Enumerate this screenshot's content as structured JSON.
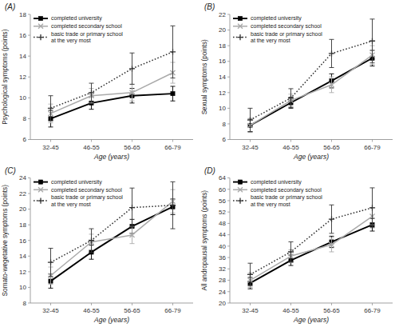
{
  "chart_data": [
    {
      "type": "line",
      "title": "(A)",
      "x_label": "Age (years)",
      "y_label": "Psychological symptoms (points)",
      "categories": [
        "32-45",
        "46-55",
        "56-65",
        "66-79"
      ],
      "ylim": [
        6,
        18
      ],
      "yticks": [
        6,
        8,
        10,
        12,
        14,
        16,
        18
      ],
      "grid": false,
      "legend": "upper left",
      "series": [
        {
          "name": "completed university",
          "color": "#000000",
          "marker": "square",
          "line_style": "solid",
          "values": [
            8.0,
            9.5,
            10.2,
            10.4
          ],
          "errors": [
            0.8,
            0.6,
            0.7,
            0.7
          ]
        },
        {
          "name": "completed secondary school",
          "color": "#aaaaaa",
          "marker": "x",
          "line_style": "solid",
          "values": [
            8.5,
            10.2,
            10.5,
            12.4
          ],
          "errors": [
            0.9,
            0.7,
            0.8,
            1.0
          ]
        },
        {
          "name": "basic trade or primary school\nat the very most",
          "color": "#333333",
          "marker": "plus",
          "line_style": "dotted",
          "values": [
            9.0,
            10.5,
            12.8,
            14.4
          ],
          "errors": [
            1.2,
            0.9,
            1.5,
            2.5
          ]
        }
      ]
    },
    {
      "type": "line",
      "title": "(B)",
      "x_label": "Age (years)",
      "y_label": "Sexual symptoms (points)",
      "categories": [
        "32-45",
        "46-55",
        "56-65",
        "66-79"
      ],
      "ylim": [
        6,
        22
      ],
      "yticks": [
        6,
        8,
        10,
        12,
        14,
        16,
        18,
        20,
        22
      ],
      "grid": false,
      "legend": "upper left",
      "series": [
        {
          "name": "completed university",
          "color": "#000000",
          "marker": "square",
          "line_style": "solid",
          "values": [
            7.8,
            10.7,
            13.5,
            16.4
          ],
          "errors": [
            0.8,
            0.7,
            0.9,
            1.0
          ]
        },
        {
          "name": "completed secondary school",
          "color": "#aaaaaa",
          "marker": "x",
          "line_style": "solid",
          "values": [
            7.8,
            11.0,
            13.0,
            16.8
          ],
          "errors": [
            0.9,
            0.8,
            1.0,
            1.2
          ]
        },
        {
          "name": "basic trade or primary school\nat the very most",
          "color": "#333333",
          "marker": "plus",
          "line_style": "dotted",
          "values": [
            8.5,
            11.3,
            17.0,
            18.6
          ],
          "errors": [
            1.5,
            1.2,
            1.8,
            2.8
          ]
        }
      ]
    },
    {
      "type": "line",
      "title": "(C)",
      "x_label": "Age (years)",
      "y_label": "Somato-wegetative symptoms (points)",
      "categories": [
        "32-45",
        "46-55",
        "56-65",
        "66-79"
      ],
      "ylim": [
        8,
        24
      ],
      "yticks": [
        8,
        10,
        12,
        14,
        16,
        18,
        20,
        22,
        24
      ],
      "grid": false,
      "legend": "upper left",
      "series": [
        {
          "name": "completed university",
          "color": "#000000",
          "marker": "square",
          "line_style": "solid",
          "values": [
            10.8,
            14.5,
            17.8,
            20.3
          ],
          "errors": [
            0.9,
            0.9,
            0.9,
            1.0
          ]
        },
        {
          "name": "completed secondary school",
          "color": "#aaaaaa",
          "marker": "x",
          "line_style": "solid",
          "values": [
            11.5,
            15.8,
            16.7,
            21.0
          ],
          "errors": [
            1.1,
            1.0,
            1.1,
            1.5
          ]
        },
        {
          "name": "basic trade or primary school\nat the very most",
          "color": "#333333",
          "marker": "plus",
          "line_style": "dotted",
          "values": [
            13.2,
            16.0,
            20.2,
            20.5
          ],
          "errors": [
            1.8,
            1.5,
            2.5,
            3.0
          ]
        }
      ]
    },
    {
      "type": "line",
      "title": "(D)",
      "x_label": "Age (years)",
      "y_label": "All andropausal symptoms (points)",
      "categories": [
        "32-45",
        "46-55",
        "56-65",
        "66-79"
      ],
      "ylim": [
        20,
        64
      ],
      "yticks": [
        20,
        24,
        28,
        32,
        36,
        40,
        44,
        48,
        52,
        56,
        60,
        64
      ],
      "grid": false,
      "legend": "upper left",
      "series": [
        {
          "name": "completed university",
          "color": "#000000",
          "marker": "square",
          "line_style": "solid",
          "values": [
            27.0,
            35.0,
            41.5,
            47.5
          ],
          "errors": [
            2.0,
            1.8,
            2.0,
            2.2
          ]
        },
        {
          "name": "completed secondary school",
          "color": "#aaaaaa",
          "marker": "x",
          "line_style": "solid",
          "values": [
            28.0,
            36.5,
            40.5,
            50.5
          ],
          "errors": [
            2.5,
            2.2,
            2.5,
            3.0
          ]
        },
        {
          "name": "basic trade or primary school\nat the very most",
          "color": "#333333",
          "marker": "plus",
          "line_style": "dotted",
          "values": [
            30.0,
            38.0,
            49.5,
            53.5
          ],
          "errors": [
            4.0,
            3.5,
            5.0,
            7.0
          ]
        }
      ]
    }
  ]
}
